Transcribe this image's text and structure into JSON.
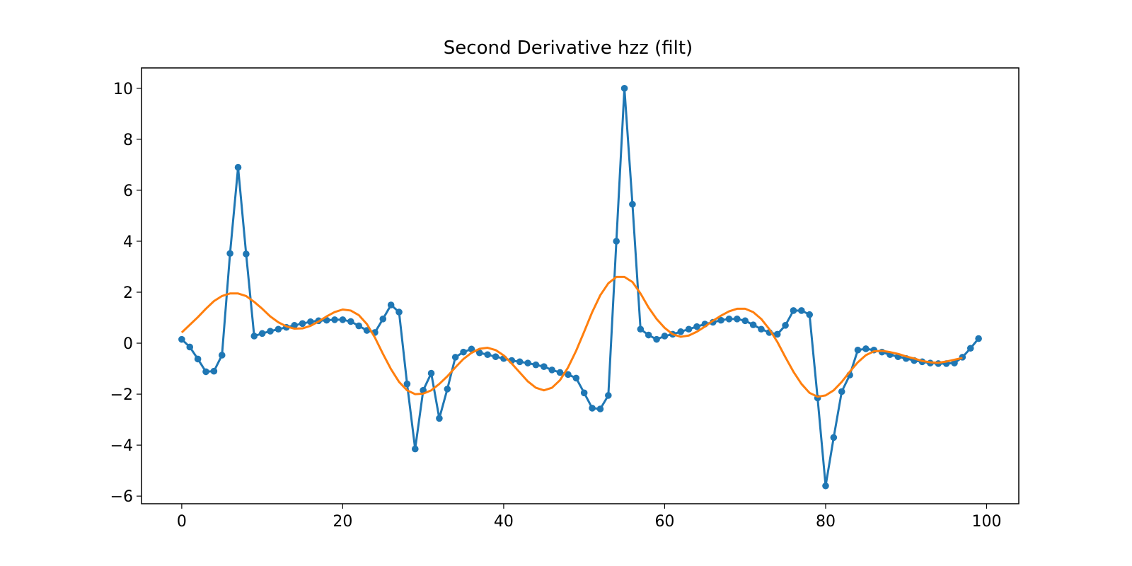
{
  "chart_data": {
    "type": "line",
    "title": "Second Derivative hzz (filt)",
    "xlabel": "",
    "ylabel": "",
    "xlim": [
      -5,
      104
    ],
    "ylim": [
      -6.3,
      10.8
    ],
    "xticks": [
      0,
      20,
      40,
      60,
      80,
      100
    ],
    "yticks": [
      -6,
      -4,
      -2,
      0,
      2,
      4,
      6,
      8,
      10
    ],
    "grid": false,
    "legend": "none",
    "series": [
      {
        "color": "#1f77b4",
        "marker": "circle",
        "x": [
          0,
          1,
          2,
          3,
          4,
          5,
          6,
          7,
          8,
          9,
          10,
          11,
          12,
          13,
          14,
          15,
          16,
          17,
          18,
          19,
          20,
          21,
          22,
          23,
          24,
          25,
          26,
          27,
          28,
          29,
          30,
          31,
          32,
          33,
          34,
          35,
          36,
          37,
          38,
          39,
          40,
          41,
          42,
          43,
          44,
          45,
          46,
          47,
          48,
          49,
          50,
          51,
          52,
          53,
          54,
          55,
          56,
          57,
          58,
          59,
          60,
          61,
          62,
          63,
          64,
          65,
          66,
          67,
          68,
          69,
          70,
          71,
          72,
          73,
          74,
          75,
          76,
          77,
          78,
          79,
          80,
          81,
          82,
          83,
          84,
          85,
          86,
          87,
          88,
          89,
          90,
          91,
          92,
          93,
          94,
          95,
          96,
          97,
          98,
          99
        ],
        "y": [
          0.15,
          -0.15,
          -0.62,
          -1.12,
          -1.1,
          -0.47,
          3.52,
          6.9,
          3.5,
          0.28,
          0.38,
          0.47,
          0.55,
          0.62,
          0.7,
          0.77,
          0.84,
          0.88,
          0.9,
          0.92,
          0.92,
          0.85,
          0.68,
          0.5,
          0.42,
          0.95,
          1.5,
          1.22,
          -1.6,
          -4.15,
          -1.85,
          -1.18,
          -2.95,
          -1.8,
          -0.55,
          -0.35,
          -0.23,
          -0.38,
          -0.45,
          -0.53,
          -0.6,
          -0.68,
          -0.73,
          -0.78,
          -0.85,
          -0.92,
          -1.05,
          -1.15,
          -1.23,
          -1.37,
          -1.95,
          -2.55,
          -2.58,
          -2.05,
          4.0,
          10.0,
          5.45,
          0.55,
          0.32,
          0.15,
          0.28,
          0.35,
          0.45,
          0.55,
          0.65,
          0.75,
          0.82,
          0.9,
          0.95,
          0.95,
          0.88,
          0.72,
          0.55,
          0.42,
          0.35,
          0.7,
          1.28,
          1.28,
          1.12,
          -2.15,
          -5.6,
          -3.7,
          -1.9,
          -1.25,
          -0.27,
          -0.22,
          -0.27,
          -0.35,
          -0.45,
          -0.53,
          -0.6,
          -0.68,
          -0.73,
          -0.78,
          -0.8,
          -0.8,
          -0.78,
          -0.55,
          -0.2,
          0.18
        ]
      },
      {
        "color": "#ff7f0e",
        "marker": "none",
        "x": [
          0,
          1,
          2,
          3,
          4,
          5,
          6,
          7,
          8,
          9,
          10,
          11,
          12,
          13,
          14,
          15,
          16,
          17,
          18,
          19,
          20,
          21,
          22,
          23,
          24,
          25,
          26,
          27,
          28,
          29,
          30,
          31,
          32,
          33,
          34,
          35,
          36,
          37,
          38,
          39,
          40,
          41,
          42,
          43,
          44,
          45,
          46,
          47,
          48,
          49,
          50,
          51,
          52,
          53,
          54,
          55,
          56,
          57,
          58,
          59,
          60,
          61,
          62,
          63,
          64,
          65,
          66,
          67,
          68,
          69,
          70,
          71,
          72,
          73,
          74,
          75,
          76,
          77,
          78,
          79,
          80,
          81,
          82,
          83,
          84,
          85,
          86,
          87,
          88,
          89,
          90,
          91,
          92,
          93,
          94,
          95,
          96,
          97
        ],
        "y": [
          0.42,
          0.72,
          1.02,
          1.35,
          1.65,
          1.85,
          1.95,
          1.95,
          1.85,
          1.62,
          1.35,
          1.05,
          0.82,
          0.66,
          0.57,
          0.58,
          0.68,
          0.85,
          1.05,
          1.22,
          1.32,
          1.28,
          1.1,
          0.75,
          0.22,
          -0.42,
          -1.02,
          -1.52,
          -1.85,
          -2.0,
          -1.98,
          -1.85,
          -1.6,
          -1.3,
          -0.95,
          -0.62,
          -0.38,
          -0.22,
          -0.18,
          -0.27,
          -0.48,
          -0.8,
          -1.15,
          -1.5,
          -1.75,
          -1.85,
          -1.75,
          -1.45,
          -0.95,
          -0.3,
          0.45,
          1.22,
          1.88,
          2.35,
          2.6,
          2.6,
          2.4,
          1.95,
          1.4,
          0.95,
          0.6,
          0.35,
          0.25,
          0.3,
          0.45,
          0.65,
          0.88,
          1.08,
          1.25,
          1.35,
          1.35,
          1.22,
          0.95,
          0.55,
          0.05,
          -0.55,
          -1.12,
          -1.6,
          -1.95,
          -2.1,
          -2.05,
          -1.85,
          -1.52,
          -1.12,
          -0.75,
          -0.47,
          -0.32,
          -0.3,
          -0.35,
          -0.42,
          -0.52,
          -0.6,
          -0.7,
          -0.75,
          -0.77,
          -0.72,
          -0.65,
          -0.58
        ]
      }
    ]
  }
}
